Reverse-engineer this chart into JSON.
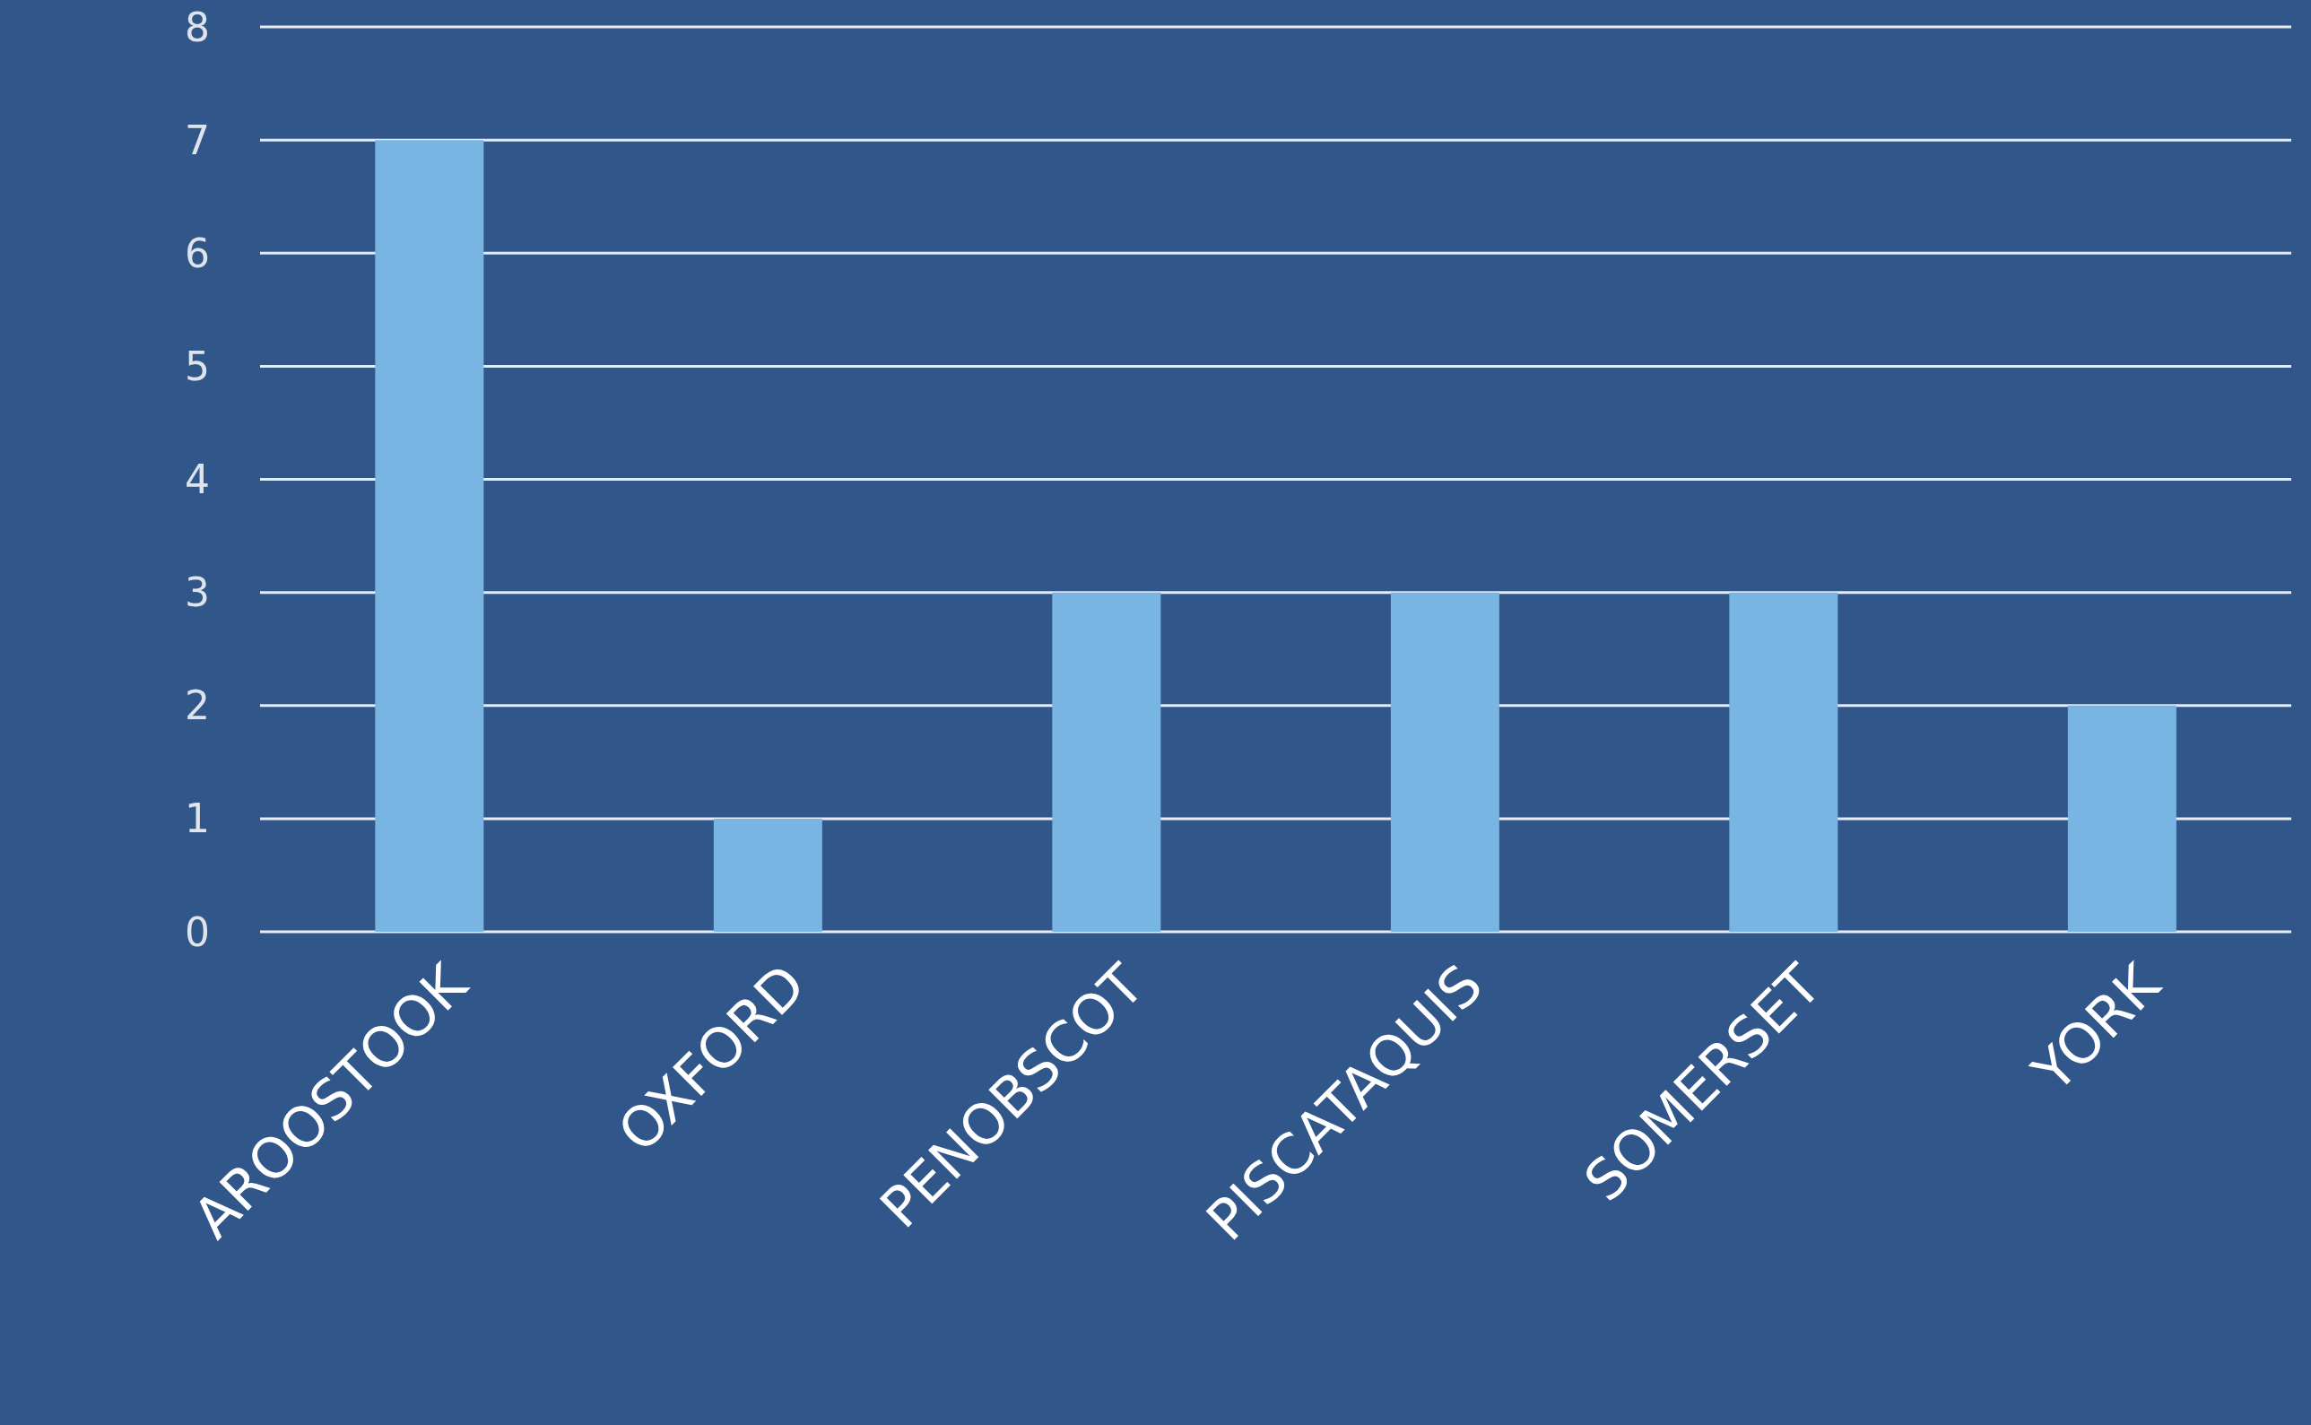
{
  "chart_data": {
    "type": "bar",
    "categories": [
      "AROOSTOOK",
      "OXFORD",
      "PENOBSCOT",
      "PISCATAQUIS",
      "SOMERSET",
      "YORK"
    ],
    "values": [
      7,
      1,
      3,
      3,
      3,
      2
    ],
    "color": "#79b5e3",
    "ylim": [
      0,
      8
    ],
    "yticks": [
      0,
      1,
      2,
      3,
      4,
      5,
      6,
      7,
      8
    ],
    "grid": "y"
  }
}
